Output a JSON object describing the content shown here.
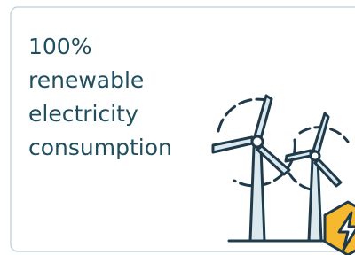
{
  "card": {
    "title_lines": [
      "100%",
      "renewable",
      "electricity",
      "consumption"
    ]
  }
}
